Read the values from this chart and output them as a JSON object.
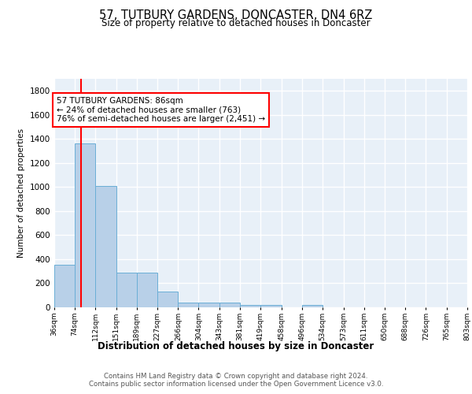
{
  "title": "57, TUTBURY GARDENS, DONCASTER, DN4 6RZ",
  "subtitle": "Size of property relative to detached houses in Doncaster",
  "xlabel": "Distribution of detached houses by size in Doncaster",
  "ylabel": "Number of detached properties",
  "bar_color": "#b8d0e8",
  "bar_edge_color": "#6aaed6",
  "bg_color": "#e8f0f8",
  "grid_color": "white",
  "vline_color": "red",
  "vline_x": 86,
  "annotation_text": "57 TUTBURY GARDENS: 86sqm\n← 24% of detached houses are smaller (763)\n76% of semi-detached houses are larger (2,451) →",
  "annotation_box_color": "white",
  "annotation_box_edge": "red",
  "bins": [
    36,
    74,
    112,
    151,
    189,
    227,
    266,
    304,
    343,
    381,
    419,
    458,
    496,
    534,
    573,
    611,
    650,
    688,
    726,
    765,
    803
  ],
  "counts": [
    355,
    1363,
    1012,
    291,
    291,
    130,
    40,
    38,
    38,
    20,
    18,
    0,
    18,
    0,
    0,
    0,
    0,
    0,
    0,
    0
  ],
  "ylim": [
    0,
    1900
  ],
  "yticks": [
    0,
    200,
    400,
    600,
    800,
    1000,
    1200,
    1400,
    1600,
    1800
  ],
  "footer_line1": "Contains HM Land Registry data © Crown copyright and database right 2024.",
  "footer_line2": "Contains public sector information licensed under the Open Government Licence v3.0."
}
